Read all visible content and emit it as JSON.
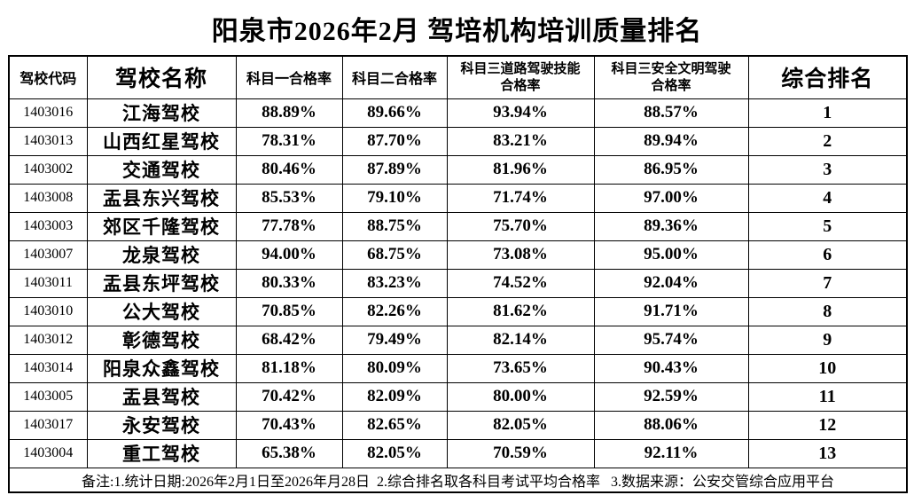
{
  "title": "阳泉市2026年2月 驾培机构培训质量排名",
  "table": {
    "headers": [
      "驾校代码",
      "驾校名称",
      "科目一合格率",
      "科目二合格率",
      "科目三道路驾驶技能\n合格率",
      "科目三安全文明驾驶\n合格率",
      "综合排名"
    ],
    "rows": [
      [
        "1403016",
        "江海驾校",
        "88.89%",
        "89.66%",
        "93.94%",
        "88.57%",
        "1"
      ],
      [
        "1403013",
        "山西红星驾校",
        "78.31%",
        "87.70%",
        "83.21%",
        "89.94%",
        "2"
      ],
      [
        "1403002",
        "交通驾校",
        "80.46%",
        "87.89%",
        "81.96%",
        "86.95%",
        "3"
      ],
      [
        "1403008",
        "盂县东兴驾校",
        "85.53%",
        "79.10%",
        "71.74%",
        "97.00%",
        "4"
      ],
      [
        "1403003",
        "郊区千隆驾校",
        "77.78%",
        "88.75%",
        "75.70%",
        "89.36%",
        "5"
      ],
      [
        "1403007",
        "龙泉驾校",
        "94.00%",
        "68.75%",
        "73.08%",
        "95.00%",
        "6"
      ],
      [
        "1403011",
        "盂县东坪驾校",
        "80.33%",
        "83.23%",
        "74.52%",
        "92.04%",
        "7"
      ],
      [
        "1403010",
        "公大驾校",
        "70.85%",
        "82.26%",
        "81.62%",
        "91.71%",
        "8"
      ],
      [
        "1403012",
        "彰德驾校",
        "68.42%",
        "79.49%",
        "82.14%",
        "95.74%",
        "9"
      ],
      [
        "1403014",
        "阳泉众鑫驾校",
        "81.18%",
        "80.09%",
        "73.65%",
        "90.43%",
        "10"
      ],
      [
        "1403005",
        "盂县驾校",
        "70.42%",
        "82.09%",
        "80.00%",
        "92.59%",
        "11"
      ],
      [
        "1403017",
        "永安驾校",
        "70.43%",
        "82.65%",
        "82.05%",
        "88.06%",
        "12"
      ],
      [
        "1403004",
        "重工驾校",
        "65.38%",
        "82.05%",
        "70.59%",
        "92.11%",
        "13"
      ]
    ]
  },
  "note": "备注:1.统计日期:2026年2月1日至2026年月28日  2.综合排名取各科目考试平均合格率   3.数据来源：公安交管综合应用平台"
}
